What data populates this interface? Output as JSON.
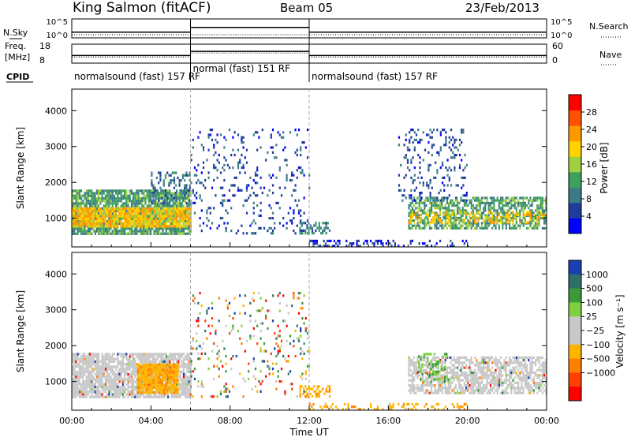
{
  "header": {
    "station": "King Salmon (fitACF)",
    "beam": "Beam 05",
    "date": "23/Feb/2013"
  },
  "strips": {
    "nsky_label": "N.Sky",
    "nsearch_label": "N.Search",
    "nsky_ticks": [
      "10^5",
      "10^0"
    ],
    "nsearch_ticks": [
      "10^5",
      "10^0"
    ],
    "freq_label_line1": "Freq.",
    "freq_label_line2": "[MHz]",
    "freq_ticks": [
      "18",
      "8"
    ],
    "nave_label": "Nave",
    "nave_ticks": [
      "60",
      "0"
    ],
    "cpid_label": "CPID",
    "cpid_segments": [
      {
        "text": "normalsound (fast) 157 RF",
        "start_hour": 0,
        "end_hour": 6
      },
      {
        "text": "normal (fast) 151 RF",
        "start_hour": 6,
        "end_hour": 12
      },
      {
        "text": "normalsound (fast) 157 RF",
        "start_hour": 12,
        "end_hour": 24
      }
    ]
  },
  "colorbars": {
    "power": {
      "label": "Power [dB]",
      "ticks": [
        "28",
        "24",
        "20",
        "16",
        "12",
        "8",
        "4"
      ],
      "tick_values": [
        28,
        24,
        20,
        16,
        12,
        8,
        4
      ],
      "range": [
        0,
        32
      ],
      "colors": [
        "#0000ff",
        "#1d3c9c",
        "#3d7a88",
        "#40a060",
        "#9fd040",
        "#ffd200",
        "#ff9900",
        "#ff5200",
        "#ff0000"
      ]
    },
    "velocity": {
      "label": "Velocity [m s⁻¹]",
      "ticks": [
        "1000",
        "500",
        "100",
        "25",
        "−25",
        "−100",
        "−500",
        "−1000"
      ],
      "colors": [
        "#1a3fb0",
        "#2f6f6a",
        "#3a9a3a",
        "#7fd040",
        "#c8c8c8",
        "#c8c8c8",
        "#ffb400",
        "#ff8000",
        "#ff4000",
        "#ff0000"
      ]
    }
  },
  "chart_data": {
    "type": "heatmap",
    "title": "King Salmon (fitACF)  Beam 05  23/Feb/2013",
    "xlabel": "Time UT",
    "ylabel": "Slant Range [km]",
    "xlim": [
      0,
      24
    ],
    "ylim": [
      200,
      4600
    ],
    "x_ticks": [
      "00:00",
      "04:00",
      "08:00",
      "12:00",
      "16:00",
      "20:00",
      "00:00"
    ],
    "y_ticks": [
      "1000",
      "2000",
      "3000",
      "4000"
    ],
    "y_tick_values": [
      1000,
      2000,
      3000,
      4000
    ],
    "mode_change_hours": [
      6,
      12
    ],
    "panels": [
      {
        "quantity": "Power",
        "units": "dB",
        "scatter_regions": [
          {
            "t0": 0,
            "t1": 6,
            "r0": 600,
            "r1": 1800,
            "level": 12,
            "density": 0.85
          },
          {
            "t0": 0,
            "t1": 6,
            "r0": 800,
            "r1": 1300,
            "level": 20,
            "density": 0.9
          },
          {
            "t0": 4,
            "t1": 6,
            "r0": 1400,
            "r1": 2300,
            "level": 8,
            "density": 0.35
          },
          {
            "t0": 6,
            "t1": 12,
            "r0": 600,
            "r1": 3500,
            "level": 6,
            "density": 0.1
          },
          {
            "t0": 11.5,
            "t1": 13,
            "r0": 600,
            "r1": 900,
            "level": 10,
            "density": 0.5
          },
          {
            "t0": 12,
            "t1": 20,
            "r0": 250,
            "r1": 400,
            "level": 4,
            "density": 0.35
          },
          {
            "t0": 17,
            "t1": 24,
            "r0": 700,
            "r1": 1600,
            "level": 12,
            "density": 0.65
          },
          {
            "t0": 17,
            "t1": 24,
            "r0": 900,
            "r1": 1200,
            "level": 20,
            "density": 0.4
          },
          {
            "t0": 16.5,
            "t1": 20,
            "r0": 1500,
            "r1": 3500,
            "level": 6,
            "density": 0.18
          }
        ]
      },
      {
        "quantity": "Velocity",
        "units": "m/s",
        "scatter_regions": [
          {
            "t0": 0,
            "t1": 6,
            "r0": 600,
            "r1": 1800,
            "level": "ground",
            "density": 0.85
          },
          {
            "t0": 3.3,
            "t1": 5.4,
            "r0": 700,
            "r1": 1500,
            "level": "-100",
            "density": 0.95
          },
          {
            "t0": 6,
            "t1": 12,
            "r0": 600,
            "r1": 3500,
            "level": "mixed",
            "density": 0.1
          },
          {
            "t0": 11.5,
            "t1": 13,
            "r0": 600,
            "r1": 900,
            "level": "-100",
            "density": 0.5
          },
          {
            "t0": 12,
            "t1": 20,
            "r0": 250,
            "r1": 400,
            "level": "-100",
            "density": 0.25
          },
          {
            "t0": 17,
            "t1": 24,
            "r0": 700,
            "r1": 1700,
            "level": "ground",
            "density": 0.7
          },
          {
            "t0": 17.5,
            "t1": 19,
            "r0": 1000,
            "r1": 1800,
            "level": "100",
            "density": 0.3
          }
        ]
      }
    ],
    "nsky_trace": [
      {
        "t0": 0,
        "t1": 6,
        "level": 0.3
      },
      {
        "t0": 6,
        "t1": 12,
        "level": 0.55
      },
      {
        "t0": 12,
        "t1": 24,
        "level": 0.3
      }
    ],
    "freq_trace": [
      {
        "t0": 0,
        "t1": 6,
        "level": 0.4
      },
      {
        "t0": 6,
        "t1": 12,
        "level": 0.62
      },
      {
        "t0": 12,
        "t1": 24,
        "level": 0.4
      }
    ]
  }
}
